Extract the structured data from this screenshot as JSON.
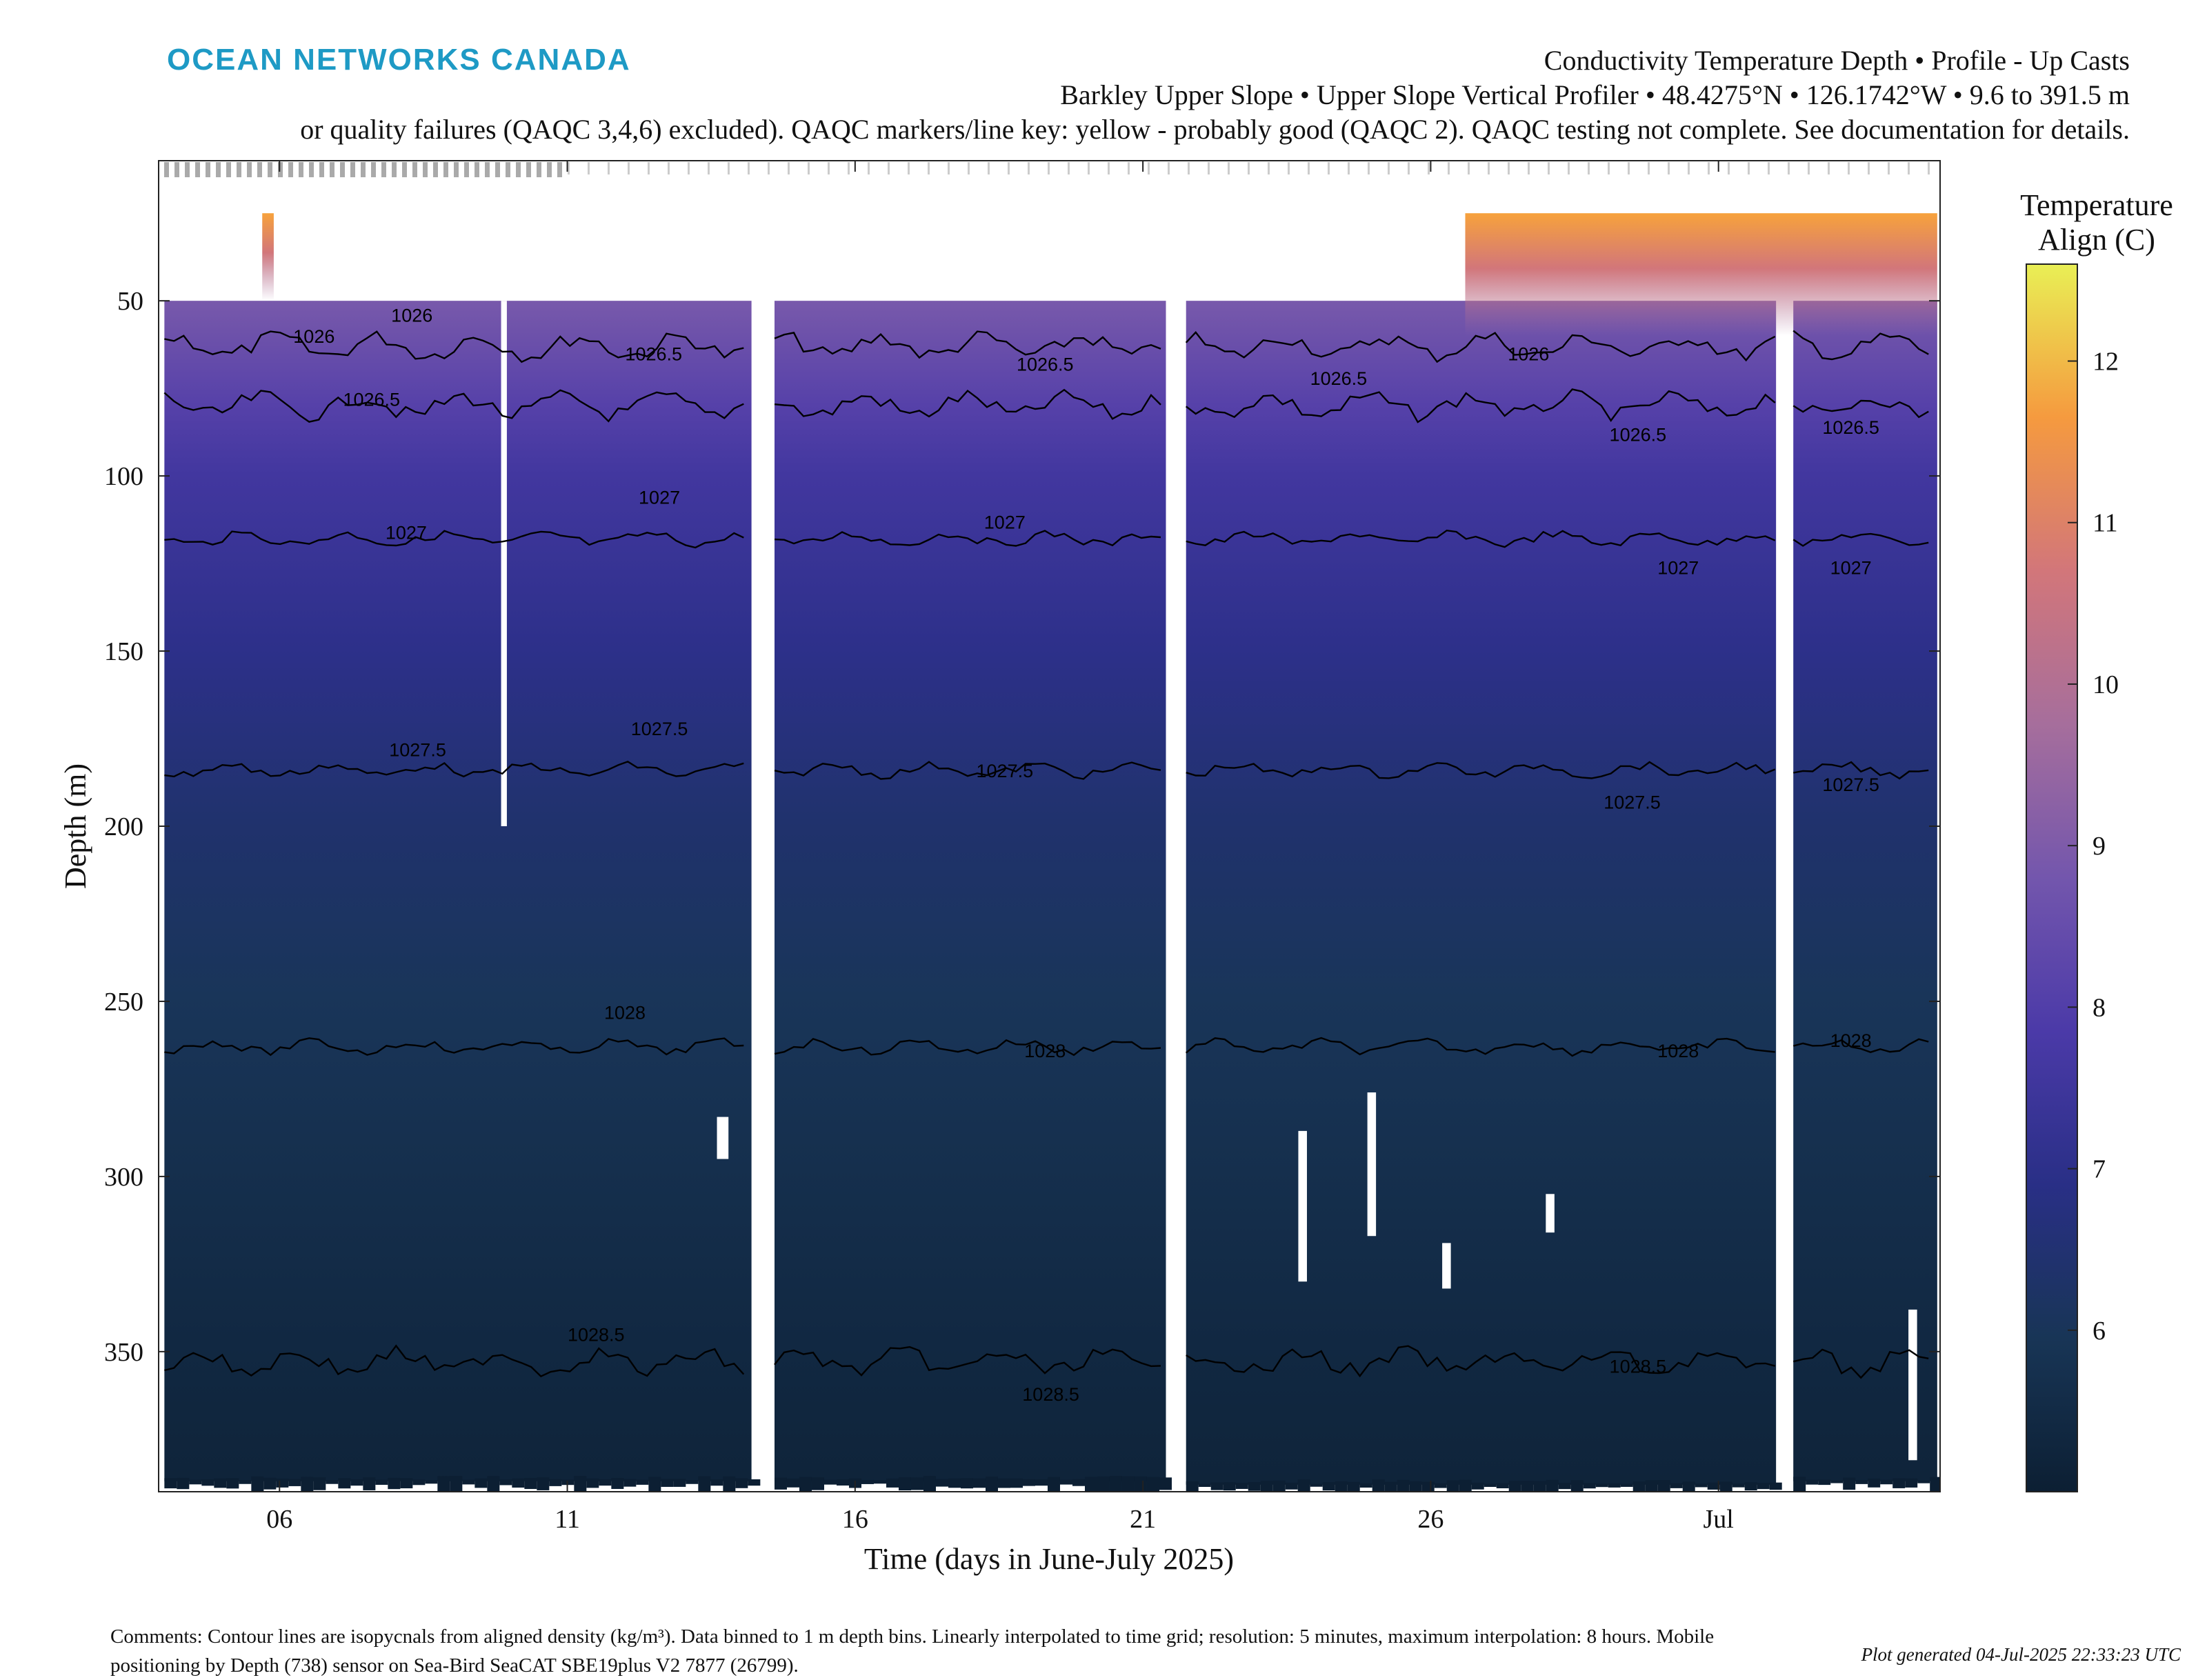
{
  "header": {
    "logo_text": "OCEAN NETWORKS CANADA",
    "title_line1": "Conductivity Temperature Depth • Profile - Up Casts",
    "title_line2": "Barkley Upper Slope • Upper Slope Vertical Profiler • 48.4275°N • 126.1742°W • 9.6 to 391.5 m",
    "title_line3": "or quality failures (QAQC 3,4,6) excluded). QAQC markers/line key: yellow - probably good (QAQC 2). QAQC testing not complete. See documentation for details."
  },
  "footer": {
    "comments": "Comments: Contour lines are isopycnals from aligned density (kg/m³). Data binned to 1 m depth bins. Linearly interpolated to time grid; resolution: 5 minutes, maximum interpolation: 8 hours. Mobile positioning by Depth (738) sensor on Sea-Bird SeaCAT SBE19plus V2 7877 (26799).",
    "generated": "Plot generated 04-Jul-2025 22:33:23 UTC"
  },
  "colors": {
    "cmap": [
      "#0c1f33",
      "#183556",
      "#292f86",
      "#4b3aa8",
      "#7356ad",
      "#a66e9c",
      "#d2767a",
      "#f59a3f",
      "#e9ef55"
    ]
  },
  "chart_data": {
    "type": "heatmap",
    "xlabel": "Time (days in June-July 2025)",
    "ylabel": "Depth (m)",
    "colorbar_label": [
      "Temperature",
      "Align (C)"
    ],
    "x_ticks": [
      {
        "label": "06",
        "day": 6
      },
      {
        "label": "11",
        "day": 11
      },
      {
        "label": "16",
        "day": 16
      },
      {
        "label": "21",
        "day": 21
      },
      {
        "label": "26",
        "day": 26
      },
      {
        "label": "Jul",
        "day": 31
      }
    ],
    "xlim_days": [
      3.9,
      34.85
    ],
    "y_ticks": [
      50,
      100,
      150,
      200,
      250,
      300,
      350
    ],
    "ylim": [
      10,
      390
    ],
    "y_reversed": true,
    "colorbar_ticks": [
      6,
      7,
      8,
      9,
      10,
      11,
      12
    ],
    "colorbar_range": [
      5.0,
      12.6
    ],
    "data_segments": [
      {
        "start_day": 4.0,
        "end_day": 14.2,
        "top_depth": 50,
        "bottom_depth": 387
      },
      {
        "start_day": 14.6,
        "end_day": 21.4,
        "top_depth": 50,
        "bottom_depth": 387
      },
      {
        "start_day": 21.75,
        "end_day": 32.0,
        "top_depth": 50,
        "bottom_depth": 388
      },
      {
        "start_day": 32.3,
        "end_day": 34.8,
        "top_depth": 50,
        "bottom_depth": 387
      }
    ],
    "warm_patches": [
      {
        "start_day": 5.7,
        "end_day": 5.9,
        "top_depth": 25,
        "bottom_depth": 50
      },
      {
        "start_day": 26.6,
        "end_day": 34.8,
        "top_depth": 25,
        "bottom_depth": 60
      }
    ],
    "temperature_profile": [
      {
        "depth": 25,
        "temp": 11.5
      },
      {
        "depth": 50,
        "temp": 8.9
      },
      {
        "depth": 80,
        "temp": 8.1
      },
      {
        "depth": 100,
        "temp": 7.6
      },
      {
        "depth": 150,
        "temp": 7.0
      },
      {
        "depth": 200,
        "temp": 6.4
      },
      {
        "depth": 250,
        "temp": 6.0
      },
      {
        "depth": 300,
        "temp": 5.7
      },
      {
        "depth": 350,
        "temp": 5.4
      },
      {
        "depth": 390,
        "temp": 5.2
      }
    ],
    "isopycnals": [
      {
        "label": "1026",
        "depth": 63
      },
      {
        "label": "1026.5",
        "depth": 80
      },
      {
        "label": "1027",
        "depth": 118
      },
      {
        "label": "1027.5",
        "depth": 184
      },
      {
        "label": "1028",
        "depth": 263
      },
      {
        "label": "1028.5",
        "depth": 353
      }
    ],
    "contour_label_positions": [
      {
        "label": "1026",
        "day": 6.6,
        "depth": 62
      },
      {
        "label": "1026",
        "day": 8.3,
        "depth": 56
      },
      {
        "label": "1026",
        "day": 27.7,
        "depth": 67
      },
      {
        "label": "1026.5",
        "day": 12.5,
        "depth": 67
      },
      {
        "label": "1026.5",
        "day": 7.6,
        "depth": 80
      },
      {
        "label": "1026.5",
        "day": 19.3,
        "depth": 70
      },
      {
        "label": "1026.5",
        "day": 24.4,
        "depth": 74
      },
      {
        "label": "1026.5",
        "day": 29.6,
        "depth": 90
      },
      {
        "label": "1026.5",
        "day": 33.3,
        "depth": 88
      },
      {
        "label": "1027",
        "day": 12.6,
        "depth": 108
      },
      {
        "label": "1027",
        "day": 8.2,
        "depth": 118
      },
      {
        "label": "1027",
        "day": 18.6,
        "depth": 115
      },
      {
        "label": "1027",
        "day": 30.3,
        "depth": 128
      },
      {
        "label": "1027",
        "day": 33.3,
        "depth": 128
      },
      {
        "label": "1027.5",
        "day": 8.4,
        "depth": 180
      },
      {
        "label": "1027.5",
        "day": 12.6,
        "depth": 174
      },
      {
        "label": "1027.5",
        "day": 18.6,
        "depth": 186
      },
      {
        "label": "1027.5",
        "day": 29.5,
        "depth": 195
      },
      {
        "label": "1027.5",
        "day": 33.3,
        "depth": 190
      },
      {
        "label": "1028",
        "day": 12.0,
        "depth": 255
      },
      {
        "label": "1028",
        "day": 19.3,
        "depth": 266
      },
      {
        "label": "1028",
        "day": 30.3,
        "depth": 266
      },
      {
        "label": "1028",
        "day": 33.3,
        "depth": 263
      },
      {
        "label": "1028.5",
        "day": 11.5,
        "depth": 347
      },
      {
        "label": "1028.5",
        "day": 19.4,
        "depth": 364
      },
      {
        "label": "1028.5",
        "day": 29.6,
        "depth": 356
      }
    ],
    "gaps": [
      {
        "start_day": 9.85,
        "end_day": 9.95,
        "top_depth": 50,
        "bottom_depth": 200
      },
      {
        "start_day": 13.6,
        "end_day": 13.8,
        "top_depth": 283,
        "bottom_depth": 295
      },
      {
        "start_day": 23.7,
        "end_day": 23.85,
        "top_depth": 287,
        "bottom_depth": 330
      },
      {
        "start_day": 24.9,
        "end_day": 25.05,
        "top_depth": 276,
        "bottom_depth": 317
      },
      {
        "start_day": 26.2,
        "end_day": 26.35,
        "top_depth": 319,
        "bottom_depth": 332
      },
      {
        "start_day": 28.0,
        "end_day": 28.15,
        "top_depth": 305,
        "bottom_depth": 316
      },
      {
        "start_day": 34.3,
        "end_day": 34.45,
        "top_depth": 338,
        "bottom_depth": 381
      }
    ]
  }
}
